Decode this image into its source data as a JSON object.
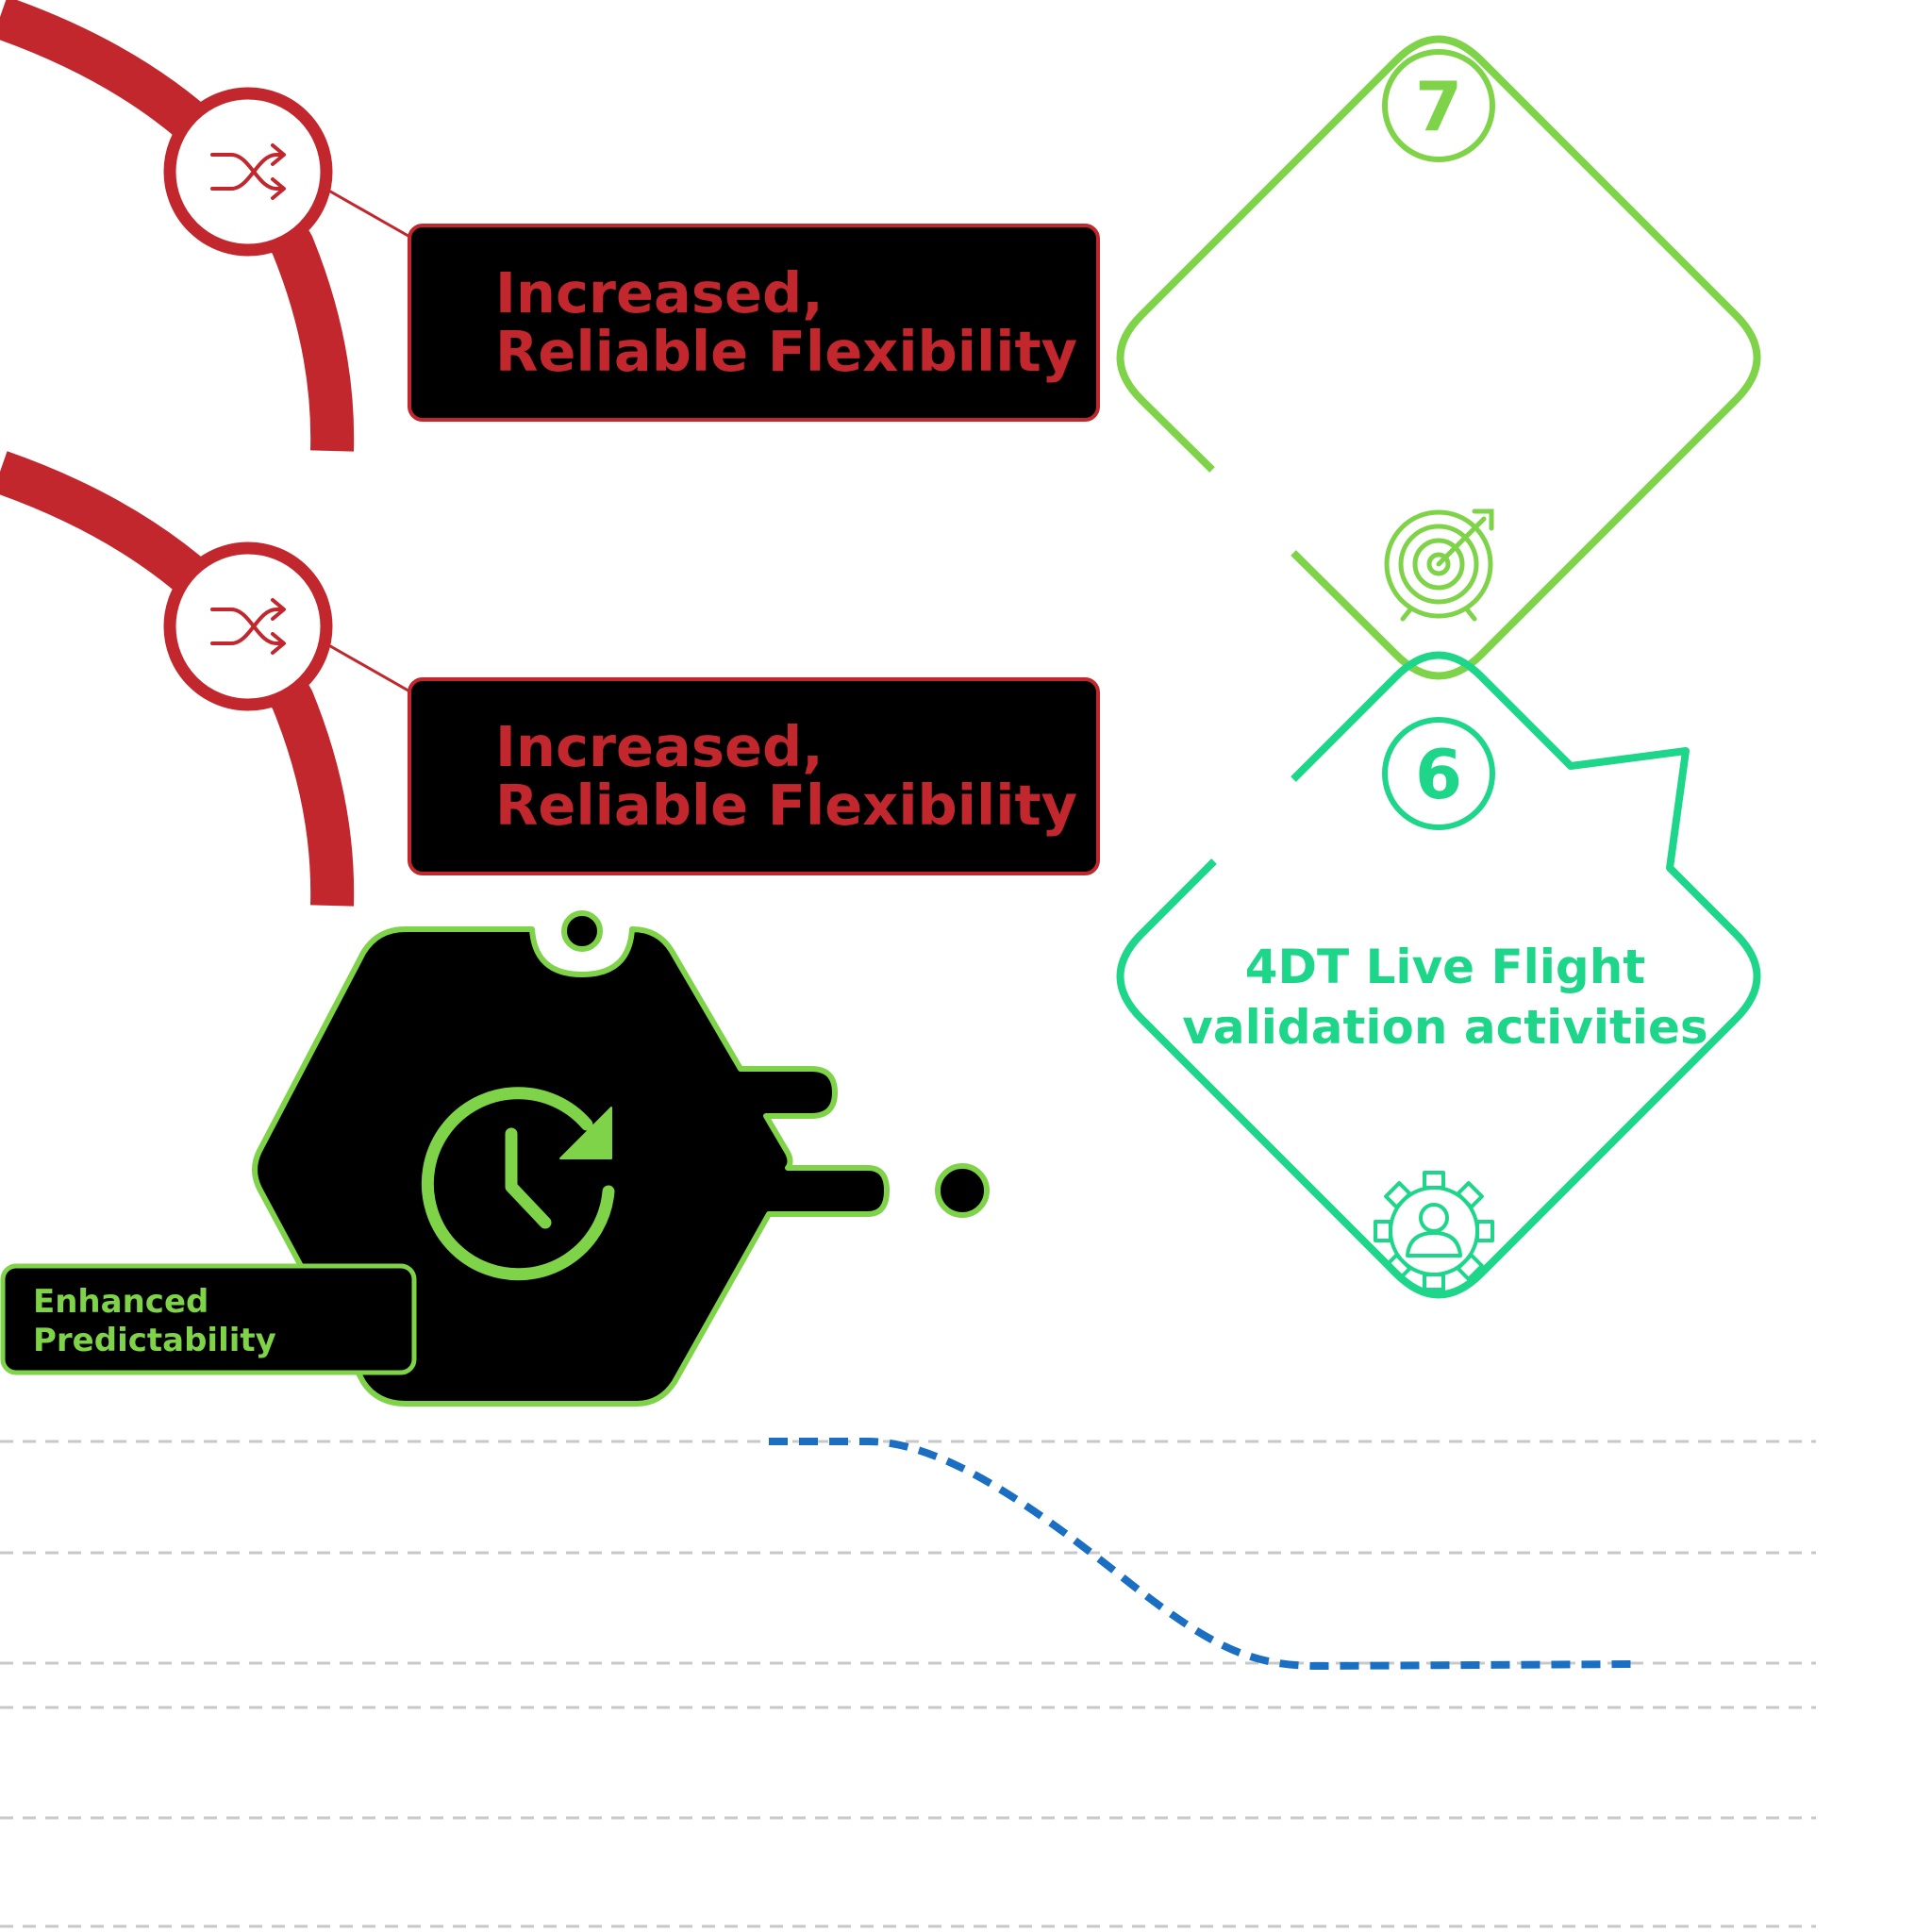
{
  "colors": {
    "red": "#c1272d",
    "light_green": "#7ed348",
    "teal_green": "#1ed68a",
    "black": "#000000",
    "blue_dash": "#1a6fc2",
    "grid_gray": "#c8c8c8"
  },
  "cards": [
    {
      "line1": "Increased,",
      "line2": "Reliable Flexibility",
      "icon": "shuffle-icon"
    },
    {
      "line1": "Increased,",
      "line2": "Reliable Flexibility",
      "icon": "shuffle-icon"
    }
  ],
  "hexagon": {
    "label_line1": "Enhanced",
    "label_line2": "Predictability",
    "icon": "clock-refresh-icon"
  },
  "diamonds": [
    {
      "number": "7",
      "title_line1": "",
      "title_line2": "",
      "icon": "target-arrow-icon"
    },
    {
      "number": "6",
      "title_line1": "4DT Live Flight",
      "title_line2": "validation activities",
      "icon": "gear-person-icon"
    }
  ]
}
